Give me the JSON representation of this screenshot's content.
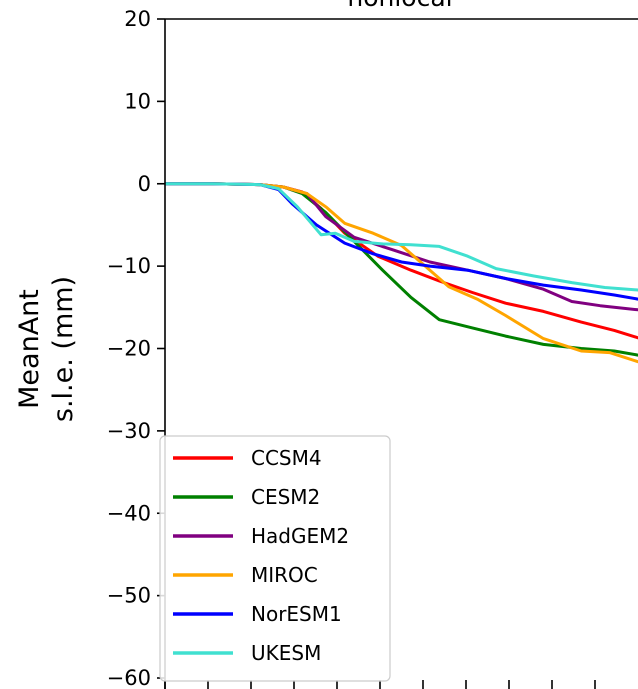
{
  "chart_data": {
    "type": "line",
    "title": "nonlocal",
    "ylabel_lines": [
      "MeanAnt",
      "s.l.e. (mm)"
    ],
    "xlabel": "",
    "ylim": [
      -60,
      20
    ],
    "xlim": [
      0,
      1
    ],
    "yticks": [
      20,
      10,
      0,
      -10,
      -20,
      -30,
      -40,
      -50,
      -60
    ],
    "ytick_labels": [
      "20",
      "10",
      "0",
      "−10",
      "−20",
      "−30",
      "−40",
      "−50",
      "−60"
    ],
    "xtick_count": 11,
    "grid": false,
    "legend_position": "bottom-left",
    "series": [
      {
        "name": "CCSM4",
        "color": "#ff0000",
        "x": [
          0,
          0.1,
          0.2,
          0.25,
          0.29,
          0.33,
          0.38,
          0.45,
          0.52,
          0.58,
          0.65,
          0.72,
          0.8,
          0.88,
          0.95,
          1.0
        ],
        "y": [
          0,
          0,
          -0.1,
          -0.4,
          -1.0,
          -3.0,
          -6.0,
          -8.8,
          -10.5,
          -11.8,
          -13.2,
          -14.5,
          -15.5,
          -16.8,
          -17.8,
          -18.7
        ]
      },
      {
        "name": "CESM2",
        "color": "#008000",
        "x": [
          0,
          0.1,
          0.2,
          0.25,
          0.29,
          0.34,
          0.4,
          0.46,
          0.52,
          0.58,
          0.65,
          0.72,
          0.8,
          0.88,
          0.95,
          1.0
        ],
        "y": [
          0,
          0,
          -0.1,
          -0.4,
          -1.2,
          -3.5,
          -7.0,
          -10.5,
          -13.8,
          -16.5,
          -17.5,
          -18.5,
          -19.5,
          -20.0,
          -20.3,
          -20.8
        ]
      },
      {
        "name": "HadGEM2",
        "color": "#800080",
        "x": [
          0,
          0.1,
          0.2,
          0.25,
          0.3,
          0.34,
          0.4,
          0.48,
          0.56,
          0.64,
          0.72,
          0.8,
          0.86,
          0.92,
          1.0
        ],
        "y": [
          0,
          0,
          -0.1,
          -0.4,
          -1.2,
          -4.0,
          -6.5,
          -8.0,
          -9.5,
          -10.5,
          -11.5,
          -12.8,
          -14.3,
          -14.8,
          -15.3
        ]
      },
      {
        "name": "MIROC",
        "color": "#ffa500",
        "x": [
          0,
          0.1,
          0.2,
          0.25,
          0.3,
          0.34,
          0.38,
          0.44,
          0.5,
          0.55,
          0.6,
          0.66,
          0.72,
          0.8,
          0.88,
          0.94,
          1.0
        ],
        "y": [
          0,
          0,
          -0.1,
          -0.4,
          -1.2,
          -2.8,
          -4.8,
          -6.0,
          -7.5,
          -10.0,
          -12.5,
          -14.0,
          -16.0,
          -18.8,
          -20.3,
          -20.5,
          -21.6
        ]
      },
      {
        "name": "NorESM1",
        "color": "#0000ff",
        "x": [
          0,
          0.1,
          0.2,
          0.24,
          0.27,
          0.32,
          0.38,
          0.44,
          0.5,
          0.56,
          0.64,
          0.72,
          0.8,
          0.88,
          0.95,
          1.0
        ],
        "y": [
          0,
          0,
          -0.1,
          -0.7,
          -2.5,
          -5.0,
          -7.2,
          -8.5,
          -9.5,
          -10.0,
          -10.5,
          -11.5,
          -12.3,
          -12.9,
          -13.5,
          -14.0
        ]
      },
      {
        "name": "UKESM",
        "color": "#40e0d0",
        "x": [
          0,
          0.1,
          0.2,
          0.24,
          0.28,
          0.33,
          0.36,
          0.4,
          0.46,
          0.52,
          0.58,
          0.64,
          0.7,
          0.78,
          0.86,
          0.93,
          1.0
        ],
        "y": [
          0,
          0,
          -0.1,
          -0.6,
          -2.8,
          -6.2,
          -6.0,
          -7.0,
          -7.3,
          -7.4,
          -7.6,
          -8.8,
          -10.3,
          -11.2,
          -12.0,
          -12.6,
          -12.9
        ]
      }
    ]
  }
}
